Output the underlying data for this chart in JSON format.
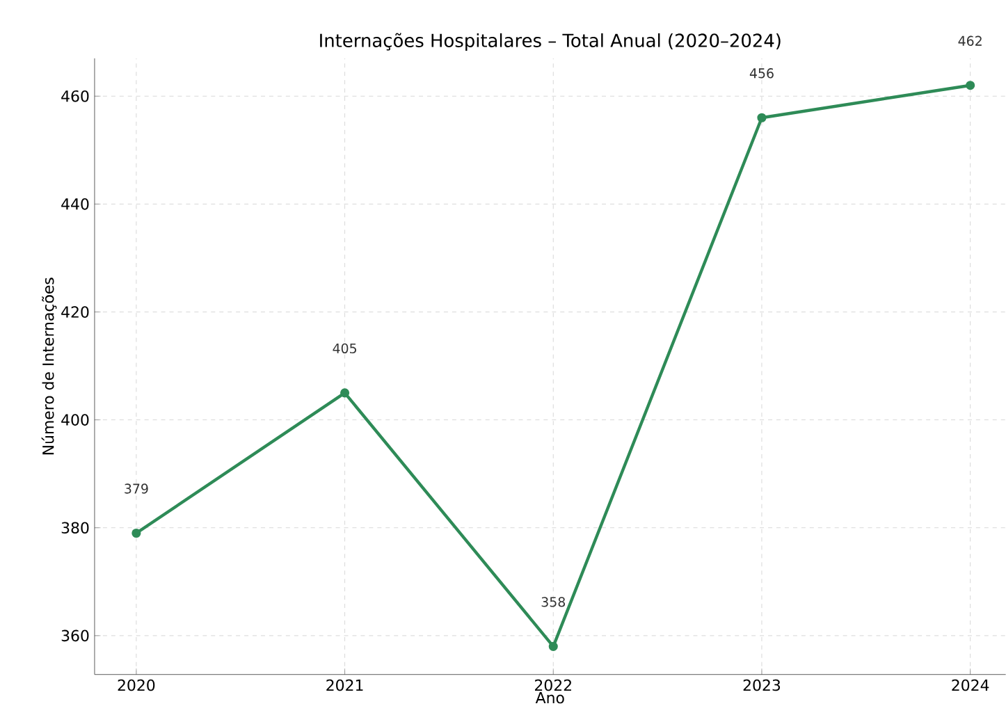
{
  "chart_data": {
    "type": "line",
    "title": "Internações Hospitalares – Total Anual (2020–2024)",
    "xlabel": "Ano",
    "ylabel": "Número de Internações",
    "x": [
      2020,
      2021,
      2022,
      2023,
      2024
    ],
    "series": [
      {
        "color": "#2e8b57",
        "values": [
          379,
          405,
          358,
          456,
          462
        ]
      }
    ],
    "xlim": [
      2019.8,
      2024.17
    ],
    "xticks": [
      2020,
      2021,
      2022,
      2023,
      2024
    ],
    "ylim": [
      352.8,
      467
    ],
    "yticks": [
      360,
      380,
      400,
      420,
      440,
      460
    ],
    "grid": true,
    "marker": "circle",
    "line_style": "solid",
    "data_labels": true
  }
}
